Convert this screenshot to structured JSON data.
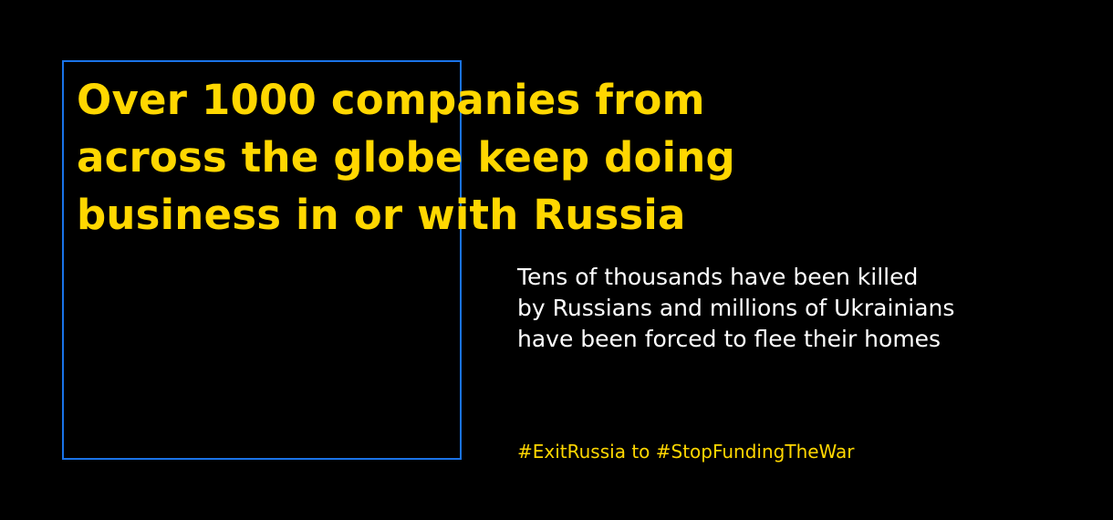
{
  "headline": {
    "lines": [
      "Over 1000 companies from",
      "across the globe keep doing",
      "business in or with Russia"
    ]
  },
  "body": {
    "lines": [
      "Tens of thousands have been killed",
      "by Russians and millions of Ukrainians",
      "have been forced to flee their homes"
    ]
  },
  "hashtag_line": "#ExitRussia to #StopFundingTheWar",
  "colors": {
    "background": "#000000",
    "accent_yellow": "#ffd700",
    "frame_blue": "#1a73e8",
    "body_text": "#ffffff"
  }
}
